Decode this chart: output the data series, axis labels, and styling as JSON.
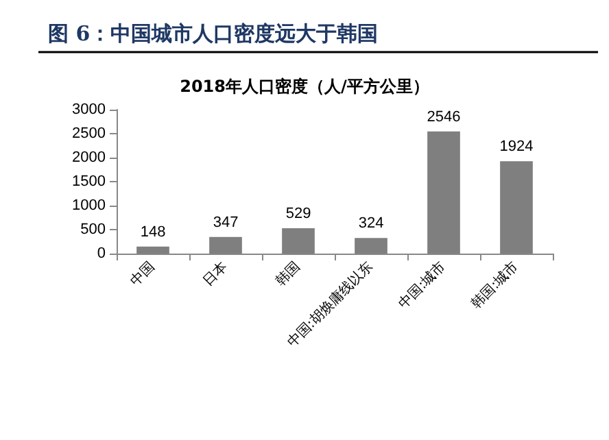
{
  "chart_data": {
    "type": "bar",
    "title": "图 6：中国城市人口密度远大于韩国",
    "subtitle": "2018年人口密度（人/平方公里）",
    "categories": [
      "中国",
      "日本",
      "韩国",
      "中国:胡焕庸线以东",
      "中国:城市",
      "韩国:城市"
    ],
    "values": [
      148,
      347,
      529,
      324,
      2546,
      1924
    ],
    "color": "#7f7f7f",
    "ylim": [
      0,
      3000
    ],
    "yticks": [
      0,
      500,
      1000,
      1500,
      2000,
      2500,
      3000
    ],
    "grid": false,
    "data_labels": true
  }
}
